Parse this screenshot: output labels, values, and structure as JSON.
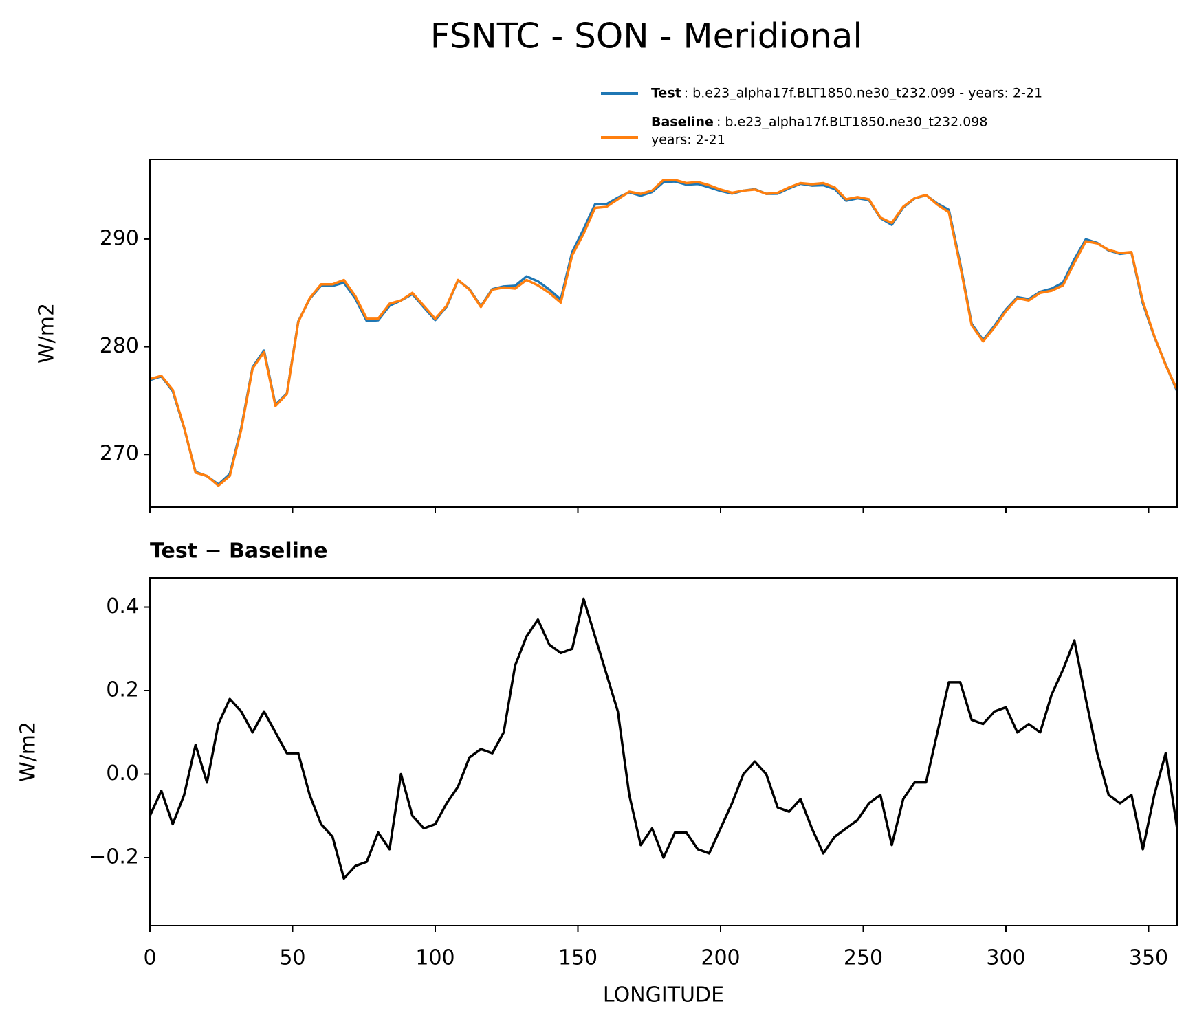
{
  "title": "FSNTC - SON - Meridional",
  "chart_data": [
    {
      "type": "line",
      "ylabel": "W/m2",
      "xlim": [
        0,
        360
      ],
      "ylim": [
        265.1,
        297.4
      ],
      "xticks": [
        0,
        50,
        100,
        150,
        200,
        250,
        300,
        350
      ],
      "yticks": [
        270,
        280,
        290
      ],
      "x": [
        0,
        4,
        8,
        12,
        16,
        20,
        24,
        28,
        32,
        36,
        40,
        44,
        48,
        52,
        56,
        60,
        64,
        68,
        72,
        76,
        80,
        84,
        88,
        92,
        96,
        100,
        104,
        108,
        112,
        116,
        120,
        124,
        128,
        132,
        136,
        140,
        144,
        148,
        152,
        156,
        160,
        164,
        168,
        172,
        176,
        180,
        184,
        188,
        192,
        196,
        200,
        204,
        208,
        212,
        216,
        220,
        224,
        228,
        232,
        236,
        240,
        244,
        248,
        252,
        256,
        260,
        264,
        268,
        272,
        276,
        280,
        284,
        288,
        292,
        296,
        300,
        304,
        308,
        312,
        316,
        320,
        324,
        328,
        332,
        336,
        340,
        344,
        348,
        352,
        356,
        360
      ],
      "legend": "upper right",
      "series": [
        {
          "name": "Test",
          "description": [
            ": b.e23_alpha17f.BLT1850.ne30_t232.099 - years: 2-21"
          ],
          "color": "#1f77b4",
          "values": [
            276.9,
            277.26,
            275.88,
            272.45,
            268.37,
            267.98,
            267.22,
            268.18,
            272.45,
            278.1,
            279.65,
            274.6,
            275.65,
            282.35,
            284.45,
            285.68,
            285.65,
            285.95,
            284.48,
            282.39,
            282.46,
            283.82,
            284.3,
            284.9,
            283.67,
            282.48,
            283.73,
            286.17,
            285.34,
            283.76,
            285.35,
            285.6,
            285.66,
            286.53,
            286.07,
            285.31,
            284.39,
            288.8,
            290.92,
            293.23,
            293.24,
            293.85,
            294.35,
            294.03,
            294.37,
            295.3,
            295.36,
            295.06,
            295.12,
            294.81,
            294.47,
            294.23,
            294.5,
            294.63,
            294.2,
            294.22,
            294.71,
            295.14,
            294.97,
            295.01,
            294.65,
            293.57,
            293.79,
            293.63,
            291.95,
            291.33,
            292.94,
            293.78,
            294.08,
            293.3,
            292.72,
            287.72,
            282.13,
            280.62,
            281.95,
            283.46,
            284.6,
            284.42,
            285.1,
            285.39,
            285.95,
            288.12,
            289.98,
            289.65,
            288.95,
            288.63,
            288.75,
            284.02,
            280.95,
            278.35,
            275.87
          ]
        },
        {
          "name": "Baseline",
          "description": [
            ": b.e23_alpha17f.BLT1850.ne30_t232.098",
            "years: 2-21"
          ],
          "color": "#ff7f0e",
          "values": [
            277,
            277.3,
            276,
            272.5,
            268.3,
            268,
            267.1,
            268,
            272.3,
            278,
            279.5,
            274.5,
            275.6,
            282.3,
            284.5,
            285.8,
            285.8,
            286.2,
            284.7,
            282.6,
            282.6,
            284,
            284.3,
            285,
            283.8,
            282.6,
            283.8,
            286.2,
            285.3,
            283.7,
            285.3,
            285.5,
            285.4,
            286.2,
            285.7,
            285,
            284.1,
            288.5,
            290.5,
            292.9,
            293,
            293.7,
            294.4,
            294.2,
            294.5,
            295.5,
            295.5,
            295.2,
            295.3,
            295,
            294.6,
            294.3,
            294.5,
            294.6,
            294.2,
            294.3,
            294.8,
            295.2,
            295.1,
            295.2,
            294.8,
            293.7,
            293.9,
            293.7,
            292,
            291.5,
            293,
            293.8,
            294.1,
            293.2,
            292.5,
            287.5,
            282,
            280.5,
            281.8,
            283.3,
            284.5,
            284.3,
            285,
            285.2,
            285.7,
            287.8,
            289.8,
            289.6,
            289,
            288.7,
            288.8,
            284.2,
            281,
            278.3,
            276
          ]
        }
      ]
    },
    {
      "type": "line",
      "title": "Test − Baseline",
      "xlabel": "LONGITUDE",
      "ylabel": "W/m2",
      "xlim": [
        0,
        360
      ],
      "ylim": [
        -0.363,
        0.47
      ],
      "xticks": [
        0,
        50,
        100,
        150,
        200,
        250,
        300,
        350
      ],
      "yticks": [
        {
          "value": -0.2,
          "label": "−0.2"
        },
        {
          "value": 0,
          "label": "0.0"
        },
        0.2,
        0.4
      ],
      "x": [
        0,
        4,
        8,
        12,
        16,
        20,
        24,
        28,
        32,
        36,
        40,
        44,
        48,
        52,
        56,
        60,
        64,
        68,
        72,
        76,
        80,
        84,
        88,
        92,
        96,
        100,
        104,
        108,
        112,
        116,
        120,
        124,
        128,
        132,
        136,
        140,
        144,
        148,
        152,
        156,
        160,
        164,
        168,
        172,
        176,
        180,
        184,
        188,
        192,
        196,
        200,
        204,
        208,
        212,
        216,
        220,
        224,
        228,
        232,
        236,
        240,
        244,
        248,
        252,
        256,
        260,
        264,
        268,
        272,
        276,
        280,
        284,
        288,
        292,
        296,
        300,
        304,
        308,
        312,
        316,
        320,
        324,
        328,
        332,
        336,
        340,
        344,
        348,
        352,
        356,
        360
      ],
      "series": [
        {
          "color": "#000000",
          "values": [
            -0.1,
            -0.04,
            -0.12,
            -0.05,
            0.07,
            -0.02,
            0.12,
            0.18,
            0.15,
            0.1,
            0.15,
            0.1,
            0.05,
            0.05,
            -0.05,
            -0.12,
            -0.15,
            -0.25,
            -0.22,
            -0.21,
            -0.14,
            -0.18,
            0,
            -0.1,
            -0.13,
            -0.12,
            -0.07,
            -0.03,
            0.04,
            0.06,
            0.05,
            0.1,
            0.26,
            0.33,
            0.37,
            0.31,
            0.29,
            0.3,
            0.42,
            0.33,
            0.24,
            0.15,
            -0.05,
            -0.17,
            -0.13,
            -0.2,
            -0.14,
            -0.14,
            -0.18,
            -0.19,
            -0.13,
            -0.07,
            0,
            0.03,
            0,
            -0.08,
            -0.09,
            -0.06,
            -0.13,
            -0.19,
            -0.15,
            -0.13,
            -0.11,
            -0.07,
            -0.05,
            -0.17,
            -0.06,
            -0.02,
            -0.02,
            0.1,
            0.22,
            0.22,
            0.13,
            0.12,
            0.15,
            0.16,
            0.1,
            0.12,
            0.1,
            0.19,
            0.25,
            0.32,
            0.18,
            0.05,
            -0.05,
            -0.07,
            -0.05,
            -0.18,
            -0.05,
            0.05,
            -0.13
          ]
        }
      ]
    }
  ]
}
